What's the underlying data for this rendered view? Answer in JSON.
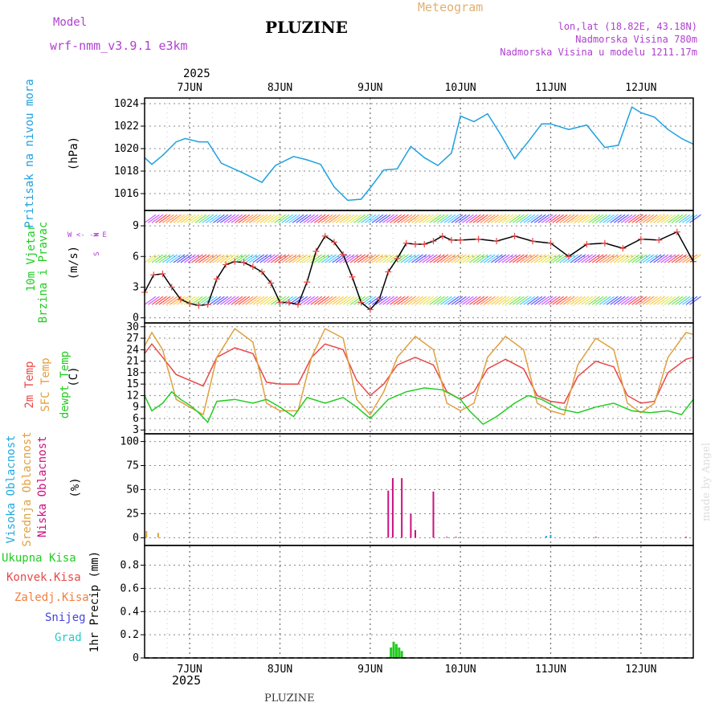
{
  "header": {
    "model_label": "Model",
    "model_name": "wrf-nmm_v3.9.1  e3km",
    "station": "PLUZINE",
    "meteogram": "Meteogram",
    "lonlat": "lon,lat (18.82E, 43.18N)",
    "altitude": "Nadmorska Visina 780m",
    "model_altitude": "Nadmorska Visina u modelu 1211.17m",
    "footer_station": "PLUZINE",
    "credit": "made by Angel",
    "year_top": "2025",
    "year_bottom": "2025"
  },
  "colors": {
    "pressure": "#1ea0e0",
    "wind_label": "#22cc22",
    "compass": "#b040d0",
    "temp2m": "#e84848",
    "sfc": "#e0a040",
    "dewpt": "#22cc22",
    "cloud_high": "#22aadd",
    "cloud_mid": "#e0a040",
    "cloud_low": "#cc1080",
    "precip": "#22cc22",
    "konvek": "#e84848",
    "zaledj": "#f08040",
    "snijeg": "#4444dd",
    "grad": "#22cccc"
  },
  "labels": {
    "pressure_title": "Pritisak na nivou mora",
    "pressure_unit": "(hPa)",
    "wind_title1": "10m Vjetar",
    "wind_title2": "Brzina i Pravac",
    "wind_unit": "(m/s)",
    "compass_n": "N",
    "compass_ew": "W <- -> E",
    "compass_s": "S",
    "temp_title1": "2m Temp",
    "temp_title2": "SFC Temp",
    "temp_title3": "dewpt Temp",
    "temp_unit": "(C)",
    "cloud_title1": "Visoka Oblacnost",
    "cloud_title2": "Srednja Oblacnost",
    "cloud_title3": "Niska Oblacnost",
    "cloud_unit": "(%)",
    "precip_title": "1hr Precip (mm)",
    "precip_leg1": "Ukupna Kisa",
    "precip_leg2": "Konvek.Kisa",
    "precip_leg3": "Zaledj.Kisa",
    "precip_leg4": "Snijeg",
    "precip_leg5": "Grad"
  },
  "chart_data": {
    "type": "line",
    "x_days": [
      "7JUN",
      "8JUN",
      "9JUN",
      "10JUN",
      "11JUN",
      "12JUN"
    ],
    "x_range_days": [
      -0.5,
      5.58
    ],
    "panels": [
      {
        "name": "pressure",
        "ylim": [
          1014.5,
          1024.5
        ],
        "yticks": [
          1016,
          1018,
          1020,
          1022,
          1024
        ],
        "series": [
          {
            "name": "Pritisak na nivou mora",
            "x": [
              -0.5,
              -0.42,
              -0.3,
              -0.15,
              -0.05,
              0.1,
              0.2,
              0.35,
              0.6,
              0.8,
              0.95,
              1.15,
              1.3,
              1.45,
              1.6,
              1.75,
              1.9,
              2.0,
              2.15,
              2.3,
              2.45,
              2.6,
              2.75,
              2.9,
              3.0,
              3.15,
              3.3,
              3.45,
              3.6,
              3.75,
              3.9,
              4.0,
              4.2,
              4.4,
              4.6,
              4.75,
              4.9,
              5.0,
              5.15,
              5.3,
              5.45,
              5.58
            ],
            "values": [
              1019.2,
              1018.6,
              1019.4,
              1020.6,
              1020.9,
              1020.6,
              1020.6,
              1018.7,
              1017.8,
              1017.0,
              1018.5,
              1019.3,
              1019.0,
              1018.6,
              1016.6,
              1015.4,
              1015.5,
              1016.5,
              1018.1,
              1018.2,
              1020.2,
              1019.2,
              1018.5,
              1019.6,
              1022.9,
              1022.4,
              1023.1,
              1021.2,
              1019.1,
              1020.6,
              1022.2,
              1022.2,
              1021.7,
              1022.1,
              1020.1,
              1020.3,
              1023.7,
              1023.2,
              1022.8,
              1021.7,
              1020.9,
              1020.4
            ]
          }
        ]
      },
      {
        "name": "wind",
        "ylim": [
          -0.5,
          10.5
        ],
        "yticks": [
          0,
          3,
          6,
          9
        ],
        "series": [
          {
            "name": "Brzina",
            "x": [
              -0.5,
              -0.4,
              -0.3,
              -0.2,
              -0.1,
              0.0,
              0.1,
              0.2,
              0.3,
              0.4,
              0.5,
              0.6,
              0.7,
              0.8,
              0.9,
              1.0,
              1.1,
              1.2,
              1.3,
              1.4,
              1.5,
              1.6,
              1.7,
              1.8,
              1.9,
              2.0,
              2.1,
              2.2,
              2.3,
              2.4,
              2.5,
              2.6,
              2.7,
              2.8,
              2.9,
              3.0,
              3.2,
              3.4,
              3.6,
              3.8,
              4.0,
              4.2,
              4.4,
              4.6,
              4.8,
              5.0,
              5.2,
              5.4,
              5.58
            ],
            "values": [
              2.5,
              4.2,
              4.3,
              3.0,
              1.8,
              1.4,
              1.2,
              1.3,
              3.8,
              5.2,
              5.5,
              5.4,
              5.0,
              4.5,
              3.4,
              1.5,
              1.5,
              1.3,
              3.5,
              6.5,
              8.0,
              7.4,
              6.2,
              4.0,
              1.5,
              0.8,
              1.8,
              4.5,
              5.8,
              7.3,
              7.2,
              7.2,
              7.5,
              8.0,
              7.6,
              7.6,
              7.7,
              7.5,
              8.0,
              7.5,
              7.3,
              6.0,
              7.2,
              7.3,
              6.8,
              7.7,
              7.6,
              8.4,
              5.5
            ]
          }
        ]
      },
      {
        "name": "temperature",
        "ylim": [
          2,
          31
        ],
        "yticks": [
          3,
          6,
          9,
          12,
          15,
          18,
          21,
          24,
          27,
          30
        ],
        "series": [
          {
            "name": "2m Temp",
            "x": [
              -0.5,
              -0.42,
              -0.3,
              -0.15,
              0.0,
              0.15,
              0.3,
              0.5,
              0.7,
              0.85,
              1.0,
              1.2,
              1.35,
              1.5,
              1.7,
              1.85,
              2.0,
              2.15,
              2.3,
              2.5,
              2.7,
              2.85,
              3.0,
              3.15,
              3.3,
              3.5,
              3.7,
              3.85,
              4.0,
              4.15,
              4.3,
              4.5,
              4.7,
              4.85,
              5.0,
              5.15,
              5.3,
              5.5,
              5.58
            ],
            "values": [
              23.0,
              25.5,
              22.0,
              17.5,
              16.0,
              14.5,
              22.0,
              24.5,
              23.0,
              15.5,
              15.0,
              15.0,
              22.0,
              25.5,
              24.0,
              16.0,
              12.0,
              15.0,
              20.0,
              22.0,
              20.0,
              13.0,
              11.0,
              13.0,
              19.0,
              21.5,
              19.0,
              12.0,
              10.5,
              10.0,
              17.0,
              21.0,
              19.5,
              12.0,
              10.0,
              10.5,
              18.0,
              21.5,
              22.0
            ]
          },
          {
            "name": "SFC Temp",
            "x": [
              -0.5,
              -0.42,
              -0.3,
              -0.15,
              0.0,
              0.15,
              0.3,
              0.5,
              0.7,
              0.85,
              1.0,
              1.2,
              1.35,
              1.5,
              1.7,
              1.85,
              2.0,
              2.15,
              2.3,
              2.5,
              2.7,
              2.85,
              3.0,
              3.15,
              3.3,
              3.5,
              3.7,
              3.85,
              4.0,
              4.15,
              4.3,
              4.5,
              4.7,
              4.85,
              5.0,
              5.15,
              5.3,
              5.5,
              5.58
            ],
            "values": [
              25.0,
              28.5,
              24.0,
              11.0,
              9.0,
              7.0,
              22.0,
              29.5,
              26.0,
              10.0,
              8.0,
              8.0,
              22.0,
              29.5,
              27.0,
              11.0,
              7.0,
              13.0,
              22.0,
              27.5,
              24.0,
              10.0,
              8.0,
              10.0,
              22.0,
              27.5,
              24.0,
              10.0,
              8.0,
              7.0,
              20.0,
              27.0,
              24.0,
              10.0,
              7.5,
              10.0,
              22.0,
              28.5,
              28.0
            ]
          },
          {
            "name": "dewpt Temp",
            "x": [
              -0.5,
              -0.42,
              -0.3,
              -0.2,
              -0.1,
              0.0,
              0.1,
              0.2,
              0.3,
              0.5,
              0.7,
              0.85,
              1.0,
              1.15,
              1.3,
              1.5,
              1.7,
              1.85,
              2.0,
              2.2,
              2.4,
              2.6,
              2.8,
              3.0,
              3.1,
              3.25,
              3.4,
              3.6,
              3.75,
              3.9,
              4.1,
              4.3,
              4.5,
              4.7,
              4.9,
              5.1,
              5.3,
              5.45,
              5.58
            ],
            "values": [
              12.0,
              8.0,
              10.0,
              13.0,
              11.0,
              9.5,
              7.5,
              5.0,
              10.5,
              11.0,
              10.0,
              11.0,
              9.0,
              6.5,
              11.5,
              10.0,
              11.5,
              9.0,
              6.0,
              11.0,
              13.0,
              14.0,
              13.5,
              11.0,
              8.0,
              4.5,
              6.5,
              10.0,
              12.0,
              11.0,
              8.5,
              7.5,
              9.0,
              10.0,
              8.0,
              7.5,
              8.0,
              7.0,
              11.0
            ]
          }
        ]
      },
      {
        "name": "clouds",
        "ylim": [
          -8,
          108
        ],
        "yticks": [
          0,
          25,
          50,
          75,
          100
        ],
        "series": [
          {
            "name": "Niska Oblacnost",
            "x": [
              2.2,
              2.25,
              2.35,
              2.45,
              2.5,
              2.7,
              2.85,
              2.95,
              4.0,
              4.5,
              5.5
            ],
            "values": [
              49,
              62,
              62,
              25,
              8,
              48,
              1,
              1,
              1,
              1,
              1
            ]
          },
          {
            "name": "Srednja Oblacnost",
            "x": [
              -0.48,
              -0.35
            ],
            "values": [
              7,
              5
            ]
          },
          {
            "name": "Visoka Oblacnost",
            "x": [
              3.95,
              4.0
            ],
            "values": [
              2,
              3
            ]
          }
        ]
      },
      {
        "name": "precip",
        "ylim": [
          0,
          0.97
        ],
        "yticks": [
          0,
          0.2,
          0.4,
          0.6,
          0.8
        ],
        "series": [
          {
            "name": "Ukupna Kisa",
            "x": [
              2.23,
              2.26,
              2.29,
              2.32,
              2.35
            ],
            "values": [
              0.09,
              0.14,
              0.12,
              0.09,
              0.06
            ]
          }
        ]
      }
    ]
  }
}
